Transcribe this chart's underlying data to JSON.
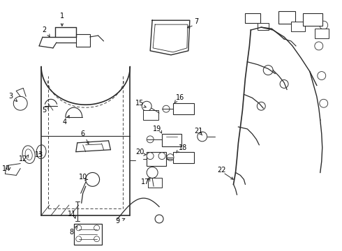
{
  "bg_color": "#ffffff",
  "line_color": "#2a2a2a",
  "fig_width": 4.9,
  "fig_height": 3.6,
  "dpi": 100
}
